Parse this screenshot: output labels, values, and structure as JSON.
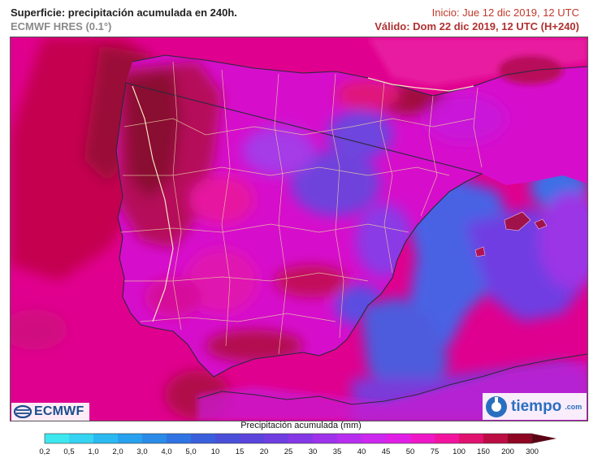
{
  "header": {
    "title": "Superficie: precipitación acumulada en 240h.",
    "model": "ECMWF HRES (0.1°)",
    "init": "Inicio: Jue 12 dic 2019, 12 UTC",
    "valid": "Válido: Dom 22 dic 2019, 12 UTC (H+240)"
  },
  "logos": {
    "ecmwf": "ECMWF",
    "tiempo": "tiempo",
    "tiempo_domain": ".com"
  },
  "legend": {
    "title": "Precipitación acumulada (mm)",
    "labels": [
      "0,2",
      "0,5",
      "1,0",
      "2,0",
      "3,0",
      "4,0",
      "5,0",
      "10",
      "15",
      "20",
      "25",
      "30",
      "35",
      "40",
      "45",
      "50",
      "75",
      "100",
      "150",
      "200",
      "300"
    ],
    "colors": [
      "#3fe8f0",
      "#36d3f2",
      "#2bb9f2",
      "#28a1ee",
      "#2a8ce8",
      "#3074e3",
      "#3a5fdc",
      "#4a4fd9",
      "#5b44dc",
      "#6e3ee0",
      "#8538e5",
      "#9e33eb",
      "#b72ef0",
      "#cc28f0",
      "#e01fe6",
      "#ef18c8",
      "#f2149e",
      "#e0116f",
      "#bd0d45",
      "#8e0622"
    ]
  },
  "map": {
    "sea_color": "#e0008f",
    "land_color": "#d60ecc"
  }
}
